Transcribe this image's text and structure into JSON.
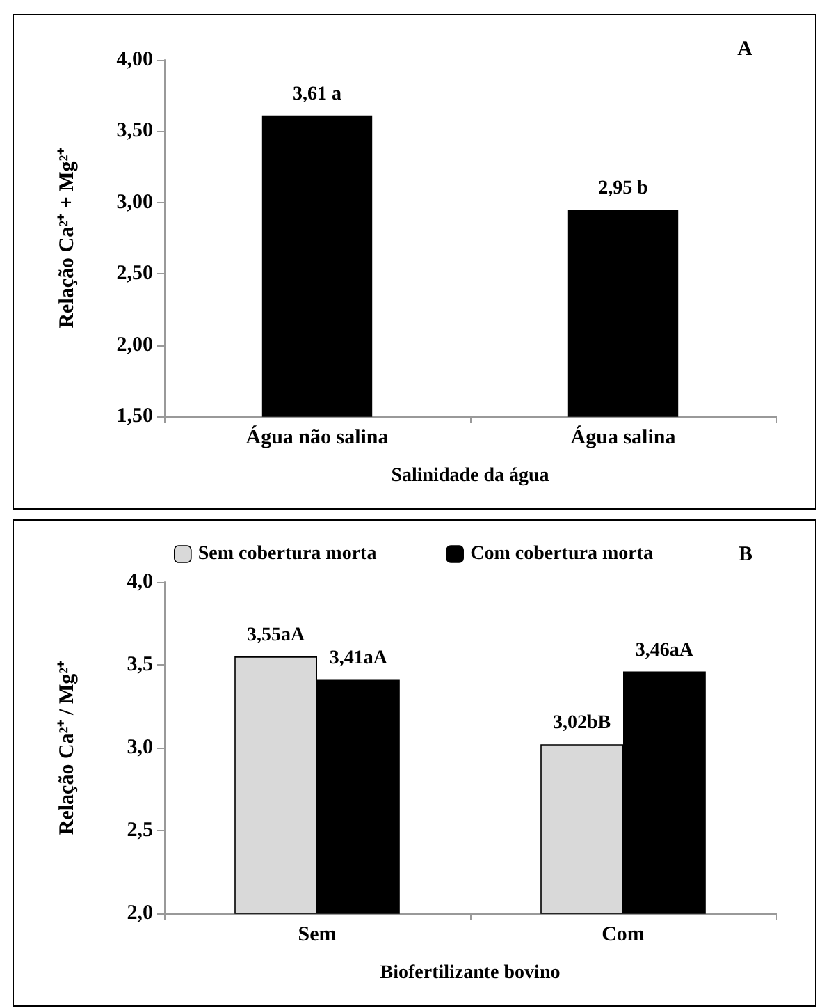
{
  "chart_data": [
    {
      "type": "bar",
      "title": "A",
      "xlabel": "Salinidade da água",
      "ylabel": "Relação Ca²⁺ + Mg²⁺",
      "categories": [
        "Água não salina",
        "Água salina"
      ],
      "series": [
        {
          "color": "#000000",
          "values": [
            3.61,
            2.95
          ],
          "value_labels": [
            "3,61 a",
            "2,95 b"
          ]
        }
      ],
      "ylim": [
        1.5,
        4
      ],
      "yticks": [
        {
          "value": 1.5,
          "label": "1,50"
        },
        {
          "value": 2,
          "label": "2,00"
        },
        {
          "value": 2.5,
          "label": "2,50"
        },
        {
          "value": 3,
          "label": "3,00"
        },
        {
          "value": 3.5,
          "label": "3,50"
        },
        {
          "value": 4,
          "label": "4,00"
        }
      ],
      "grid": false,
      "legend": false
    },
    {
      "type": "bar",
      "title": "B",
      "xlabel": "Biofertilizante bovino",
      "ylabel": "Relação Ca²⁺ / Mg²⁺",
      "categories": [
        "Sem",
        "Com"
      ],
      "series": [
        {
          "name": "Sem cobertura morta",
          "color": "#d9d9d9",
          "values": [
            3.55,
            3.02
          ],
          "value_labels": [
            "3,55aA",
            "3,02bB"
          ]
        },
        {
          "name": "Com cobertura morta",
          "color": "#000000",
          "values": [
            3.41,
            3.46
          ],
          "value_labels": [
            "3,41aA",
            "3,46aA"
          ]
        }
      ],
      "ylim": [
        2,
        4
      ],
      "yticks": [
        {
          "value": 2,
          "label": "2,0"
        },
        {
          "value": 2.5,
          "label": "2,5"
        },
        {
          "value": 3,
          "label": "3,0"
        },
        {
          "value": 3.5,
          "label": "3,5"
        },
        {
          "value": 4,
          "label": "4,0"
        }
      ],
      "grid": false,
      "legend": "top"
    }
  ]
}
